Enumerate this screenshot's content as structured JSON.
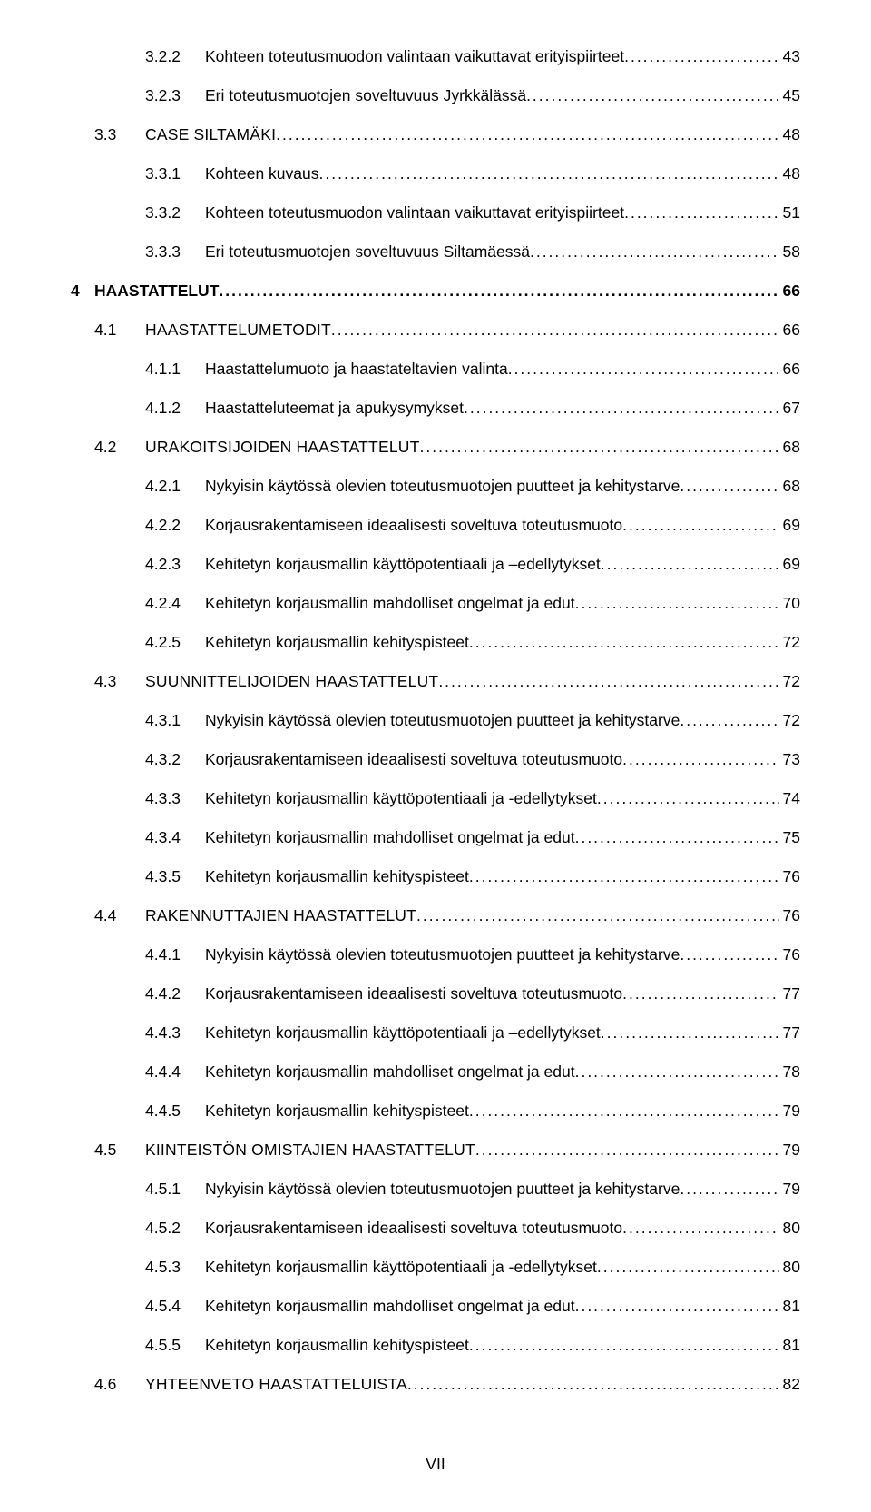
{
  "pageFooter": "VII",
  "entries": [
    {
      "cls": "top-l3",
      "num": "3.2.2",
      "title": "Kohteen toteutusmuodon valintaan vaikuttavat erityispiirteet",
      "page": "43"
    },
    {
      "cls": "top-l3",
      "num": "3.2.3",
      "title": "Eri toteutusmuotojen soveltuvuus Jyrkkälässä",
      "page": "45"
    },
    {
      "cls": "top-l2",
      "num": "3.3",
      "title": "CASE SILTAMÄKI",
      "page": "48",
      "smallcaps": true
    },
    {
      "cls": "lvl-3",
      "num": "3.3.1",
      "title": "Kohteen kuvaus",
      "page": "48"
    },
    {
      "cls": "lvl-3",
      "num": "3.3.2",
      "title": "Kohteen toteutusmuodon valintaan vaikuttavat erityispiirteet",
      "page": "51"
    },
    {
      "cls": "lvl-3",
      "num": "3.3.3",
      "title": "Eri toteutusmuotojen soveltuvuus Siltamäessä",
      "page": "58"
    },
    {
      "cls": "lvl-1",
      "num": "4",
      "title": "HAASTATTELUT",
      "page": "66",
      "bold": true
    },
    {
      "cls": "lvl-2",
      "num": "4.1",
      "title": "HAASTATTELUMETODIT",
      "page": "66",
      "smallcaps": true
    },
    {
      "cls": "lvl-3",
      "num": "4.1.1",
      "title": "Haastattelumuoto ja haastateltavien valinta",
      "page": "66"
    },
    {
      "cls": "lvl-3",
      "num": "4.1.2",
      "title": "Haastatteluteemat  ja apukysymykset",
      "page": "67"
    },
    {
      "cls": "lvl-2",
      "num": "4.2",
      "title": "URAKOITSIJOIDEN HAASTATTELUT",
      "page": "68",
      "smallcaps": true
    },
    {
      "cls": "lvl-3",
      "num": "4.2.1",
      "title": "Nykyisin käytössä olevien toteutusmuotojen puutteet ja kehitystarve",
      "page": "68"
    },
    {
      "cls": "lvl-3",
      "num": "4.2.2",
      "title": "Korjausrakentamiseen ideaalisesti soveltuva toteutusmuoto",
      "page": "69"
    },
    {
      "cls": "lvl-3",
      "num": "4.2.3",
      "title": "Kehitetyn korjausmallin käyttöpotentiaali ja –edellytykset",
      "page": "69"
    },
    {
      "cls": "lvl-3",
      "num": "4.2.4",
      "title": "Kehitetyn korjausmallin mahdolliset ongelmat ja edut",
      "page": "70"
    },
    {
      "cls": "lvl-3",
      "num": "4.2.5",
      "title": "Kehitetyn korjausmallin kehityspisteet",
      "page": "72"
    },
    {
      "cls": "lvl-2",
      "num": "4.3",
      "title": "SUUNNITTELIJOIDEN HAASTATTELUT",
      "page": "72",
      "smallcaps": true
    },
    {
      "cls": "lvl-3",
      "num": "4.3.1",
      "title": "Nykyisin käytössä olevien toteutusmuotojen puutteet ja kehitystarve",
      "page": "72"
    },
    {
      "cls": "lvl-3",
      "num": "4.3.2",
      "title": "Korjausrakentamiseen ideaalisesti soveltuva toteutusmuoto",
      "page": "73"
    },
    {
      "cls": "lvl-3",
      "num": "4.3.3",
      "title": "Kehitetyn korjausmallin käyttöpotentiaali ja -edellytykset",
      "page": "74"
    },
    {
      "cls": "lvl-3",
      "num": "4.3.4",
      "title": "Kehitetyn korjausmallin mahdolliset ongelmat ja edut",
      "page": "75"
    },
    {
      "cls": "lvl-3",
      "num": "4.3.5",
      "title": "Kehitetyn korjausmallin kehityspisteet",
      "page": "76"
    },
    {
      "cls": "lvl-2",
      "num": "4.4",
      "title": "RAKENNUTTAJIEN HAASTATTELUT",
      "page": "76",
      "smallcaps": true
    },
    {
      "cls": "lvl-3",
      "num": "4.4.1",
      "title": "Nykyisin käytössä olevien toteutusmuotojen puutteet ja kehitystarve",
      "page": "76"
    },
    {
      "cls": "lvl-3",
      "num": "4.4.2",
      "title": "Korjausrakentamiseen ideaalisesti soveltuva toteutusmuoto",
      "page": "77"
    },
    {
      "cls": "lvl-3",
      "num": "4.4.3",
      "title": "Kehitetyn korjausmallin käyttöpotentiaali ja –edellytykset",
      "page": "77"
    },
    {
      "cls": "lvl-3",
      "num": "4.4.4",
      "title": "Kehitetyn korjausmallin mahdolliset ongelmat ja edut",
      "page": "78"
    },
    {
      "cls": "lvl-3",
      "num": "4.4.5",
      "title": "Kehitetyn korjausmallin kehityspisteet",
      "page": "79"
    },
    {
      "cls": "lvl-2",
      "num": "4.5",
      "title": "KIINTEISTÖN OMISTAJIEN HAASTATTELUT",
      "page": "79",
      "smallcaps": true
    },
    {
      "cls": "lvl-3",
      "num": "4.5.1",
      "title": "Nykyisin käytössä olevien toteutusmuotojen puutteet ja kehitystarve",
      "page": "79"
    },
    {
      "cls": "lvl-3",
      "num": "4.5.2",
      "title": "Korjausrakentamiseen ideaalisesti soveltuva toteutusmuoto",
      "page": "80"
    },
    {
      "cls": "lvl-3",
      "num": "4.5.3",
      "title": "Kehitetyn korjausmallin käyttöpotentiaali ja -edellytykset",
      "page": "80"
    },
    {
      "cls": "lvl-3",
      "num": "4.5.4",
      "title": "Kehitetyn korjausmallin mahdolliset ongelmat ja edut",
      "page": "81"
    },
    {
      "cls": "lvl-3",
      "num": "4.5.5",
      "title": "Kehitetyn korjausmallin kehityspisteet",
      "page": "81"
    },
    {
      "cls": "lvl-2",
      "num": "4.6",
      "title": "YHTEENVETO HAASTATTELUISTA",
      "page": "82",
      "smallcaps": true
    }
  ]
}
